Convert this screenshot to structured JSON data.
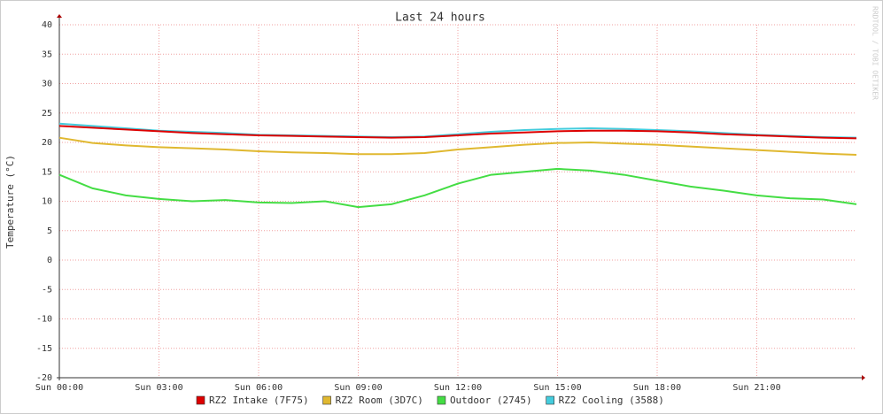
{
  "chart_data": {
    "type": "line",
    "title": "Last 24 hours",
    "y_label": "Temperature (°C)",
    "watermark": "RRDTOOL / TOBI OETIKER",
    "x": [
      0,
      1,
      2,
      3,
      4,
      5,
      6,
      7,
      8,
      9,
      10,
      11,
      12,
      13,
      14,
      15,
      16,
      17,
      18,
      19,
      20,
      21,
      22,
      23,
      24
    ],
    "xlim": [
      0,
      24
    ],
    "xticks": [
      {
        "value": 0,
        "label": "Sun 00:00"
      },
      {
        "value": 3,
        "label": "Sun 03:00"
      },
      {
        "value": 6,
        "label": "Sun 06:00"
      },
      {
        "value": 9,
        "label": "Sun 09:00"
      },
      {
        "value": 12,
        "label": "Sun 12:00"
      },
      {
        "value": 15,
        "label": "Sun 15:00"
      },
      {
        "value": 18,
        "label": "Sun 18:00"
      },
      {
        "value": 21,
        "label": "Sun 21:00"
      }
    ],
    "ylim": [
      -20,
      40
    ],
    "yticks": [
      -20,
      -15,
      -10,
      -5,
      0,
      5,
      10,
      15,
      20,
      25,
      30,
      35,
      40
    ],
    "grid": true,
    "series": [
      {
        "name": "RZ2 Intake (7F75)",
        "color": "#dd0000",
        "values": [
          22.8,
          22.5,
          22.2,
          21.9,
          21.6,
          21.4,
          21.2,
          21.1,
          21.0,
          20.9,
          20.8,
          20.9,
          21.2,
          21.5,
          21.7,
          21.9,
          22.0,
          22.0,
          21.9,
          21.7,
          21.4,
          21.2,
          21.0,
          20.8,
          20.7
        ]
      },
      {
        "name": "RZ2 Room (3D7C)",
        "color": "#e0b830",
        "values": [
          20.8,
          19.9,
          19.5,
          19.2,
          19.0,
          18.8,
          18.5,
          18.3,
          18.2,
          18.0,
          18.0,
          18.2,
          18.8,
          19.2,
          19.6,
          19.9,
          20.0,
          19.8,
          19.6,
          19.3,
          19.0,
          18.7,
          18.4,
          18.1,
          17.9
        ]
      },
      {
        "name": "Outdoor (2745)",
        "color": "#44dd44",
        "values": [
          14.5,
          12.2,
          11.0,
          10.4,
          10.0,
          10.2,
          9.8,
          9.7,
          10.0,
          9.0,
          9.5,
          11.0,
          13.0,
          14.5,
          15.0,
          15.5,
          15.2,
          14.5,
          13.5,
          12.5,
          11.8,
          11.0,
          10.5,
          10.3,
          9.5
        ]
      },
      {
        "name": "RZ2 Cooling (3588)",
        "color": "#44ccdd",
        "values": [
          23.2,
          22.8,
          22.4,
          22.0,
          21.8,
          21.6,
          21.3,
          21.2,
          21.1,
          21.0,
          20.9,
          21.0,
          21.4,
          21.8,
          22.1,
          22.3,
          22.4,
          22.3,
          22.1,
          21.9,
          21.6,
          21.3,
          21.1,
          20.9,
          20.8
        ]
      }
    ]
  }
}
